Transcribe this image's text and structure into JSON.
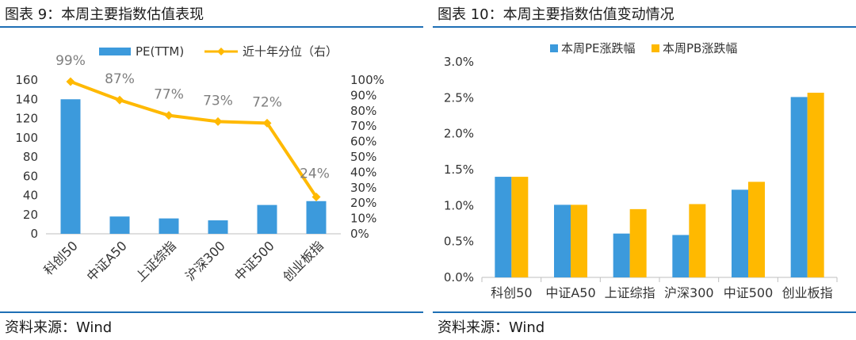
{
  "colors": {
    "blue": "#3C9ADC",
    "orange": "#FFB900",
    "axis": "#BFBFBF",
    "text": "#333333",
    "rule": "#1F6FB5",
    "pct_label": "#7F7F7F"
  },
  "left": {
    "title": "图表 9：本周主要指数估值表现",
    "source": "资料来源：Wind",
    "chart_data": {
      "type": "bar+line",
      "categories": [
        "科创50",
        "中证A50",
        "上证综指",
        "沪深300",
        "中证500",
        "创业板指"
      ],
      "series": [
        {
          "name": "PE(TTM)",
          "type": "bar",
          "axis": "left",
          "values": [
            140,
            18,
            16,
            14,
            30,
            34
          ]
        },
        {
          "name": "近十年分位（右）",
          "type": "line",
          "axis": "right",
          "values": [
            99,
            87,
            77,
            73,
            72,
            24
          ],
          "labels": [
            "99%",
            "87%",
            "77%",
            "73%",
            "72%",
            "24%"
          ]
        }
      ],
      "y_left": {
        "ylim": [
          0,
          160
        ],
        "ticks": [
          "0",
          "20",
          "40",
          "60",
          "80",
          "100",
          "120",
          "140",
          "160"
        ]
      },
      "y_right": {
        "ylim": [
          0,
          100
        ],
        "ticks": [
          "0%",
          "10%",
          "20%",
          "30%",
          "40%",
          "50%",
          "60%",
          "70%",
          "80%",
          "90%",
          "100%"
        ]
      },
      "legend_position": "top"
    }
  },
  "right": {
    "title": "图表 10：本周主要指数估值变动情况",
    "source": "资料来源：Wind",
    "chart_data": {
      "type": "bar",
      "categories": [
        "科创50",
        "中证A50",
        "上证综指",
        "沪深300",
        "中证500",
        "创业板指"
      ],
      "series": [
        {
          "name": "本周PE涨跌幅",
          "values": [
            1.4,
            1.01,
            0.61,
            0.59,
            1.22,
            2.51
          ]
        },
        {
          "name": "本周PB涨跌幅",
          "values": [
            1.4,
            1.01,
            0.95,
            1.02,
            1.33,
            2.57
          ]
        }
      ],
      "ylim": [
        0,
        3.0
      ],
      "y_ticks": [
        "0.0%",
        "0.5%",
        "1.0%",
        "1.5%",
        "2.0%",
        "2.5%",
        "3.0%"
      ],
      "legend_position": "top"
    }
  }
}
